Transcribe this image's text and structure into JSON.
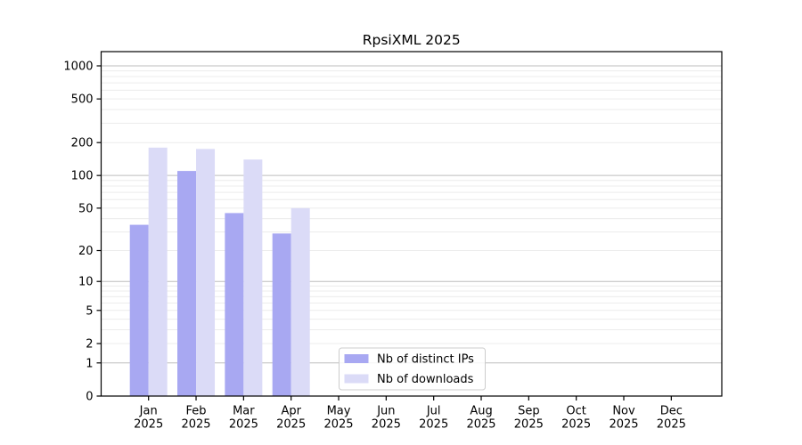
{
  "title": "RpsiXML 2025",
  "colors": {
    "distinct_ips": "#a8a8f2",
    "downloads": "#dbdbf7",
    "major_grid": "#bdbdbd",
    "minor_grid": "#ececec",
    "axis": "#000000",
    "legend_border": "#cccccc",
    "background": "#ffffff"
  },
  "legend": {
    "items": [
      {
        "label": "Nb of distinct IPs",
        "color_key": "distinct_ips"
      },
      {
        "label": "Nb of downloads",
        "color_key": "downloads"
      }
    ]
  },
  "y_axis": {
    "scale": "log1p",
    "ticks": [
      0,
      1,
      2,
      5,
      10,
      20,
      50,
      100,
      200,
      500,
      1000
    ]
  },
  "x_axis": {
    "tick_line1": [
      "Jan",
      "Feb",
      "Mar",
      "Apr",
      "May",
      "Jun",
      "Jul",
      "Aug",
      "Sep",
      "Oct",
      "Nov",
      "Dec"
    ],
    "tick_line2": [
      "2025",
      "2025",
      "2025",
      "2025",
      "2025",
      "2025",
      "2025",
      "2025",
      "2025",
      "2025",
      "2025",
      "2025"
    ]
  },
  "chart_data": {
    "type": "bar",
    "title": "RpsiXML 2025",
    "categories": [
      "Jan 2025",
      "Feb 2025",
      "Mar 2025",
      "Apr 2025",
      "May 2025",
      "Jun 2025",
      "Jul 2025",
      "Aug 2025",
      "Sep 2025",
      "Oct 2025",
      "Nov 2025",
      "Dec 2025"
    ],
    "series": [
      {
        "name": "Nb of distinct IPs",
        "color_key": "distinct_ips",
        "values": [
          35,
          110,
          45,
          29,
          null,
          null,
          null,
          null,
          null,
          null,
          null,
          null
        ]
      },
      {
        "name": "Nb of downloads",
        "color_key": "downloads",
        "values": [
          180,
          175,
          140,
          50,
          null,
          null,
          null,
          null,
          null,
          null,
          null,
          null
        ]
      }
    ],
    "xlabel": "",
    "ylabel": "",
    "yscale": "log1p",
    "yticks": [
      0,
      1,
      2,
      5,
      10,
      20,
      50,
      100,
      200,
      500,
      1000
    ],
    "ylim": [
      0,
      1300
    ],
    "grid": true,
    "grid_major_at": [
      1,
      10,
      100,
      1000
    ],
    "legend_position": "lower-center"
  }
}
